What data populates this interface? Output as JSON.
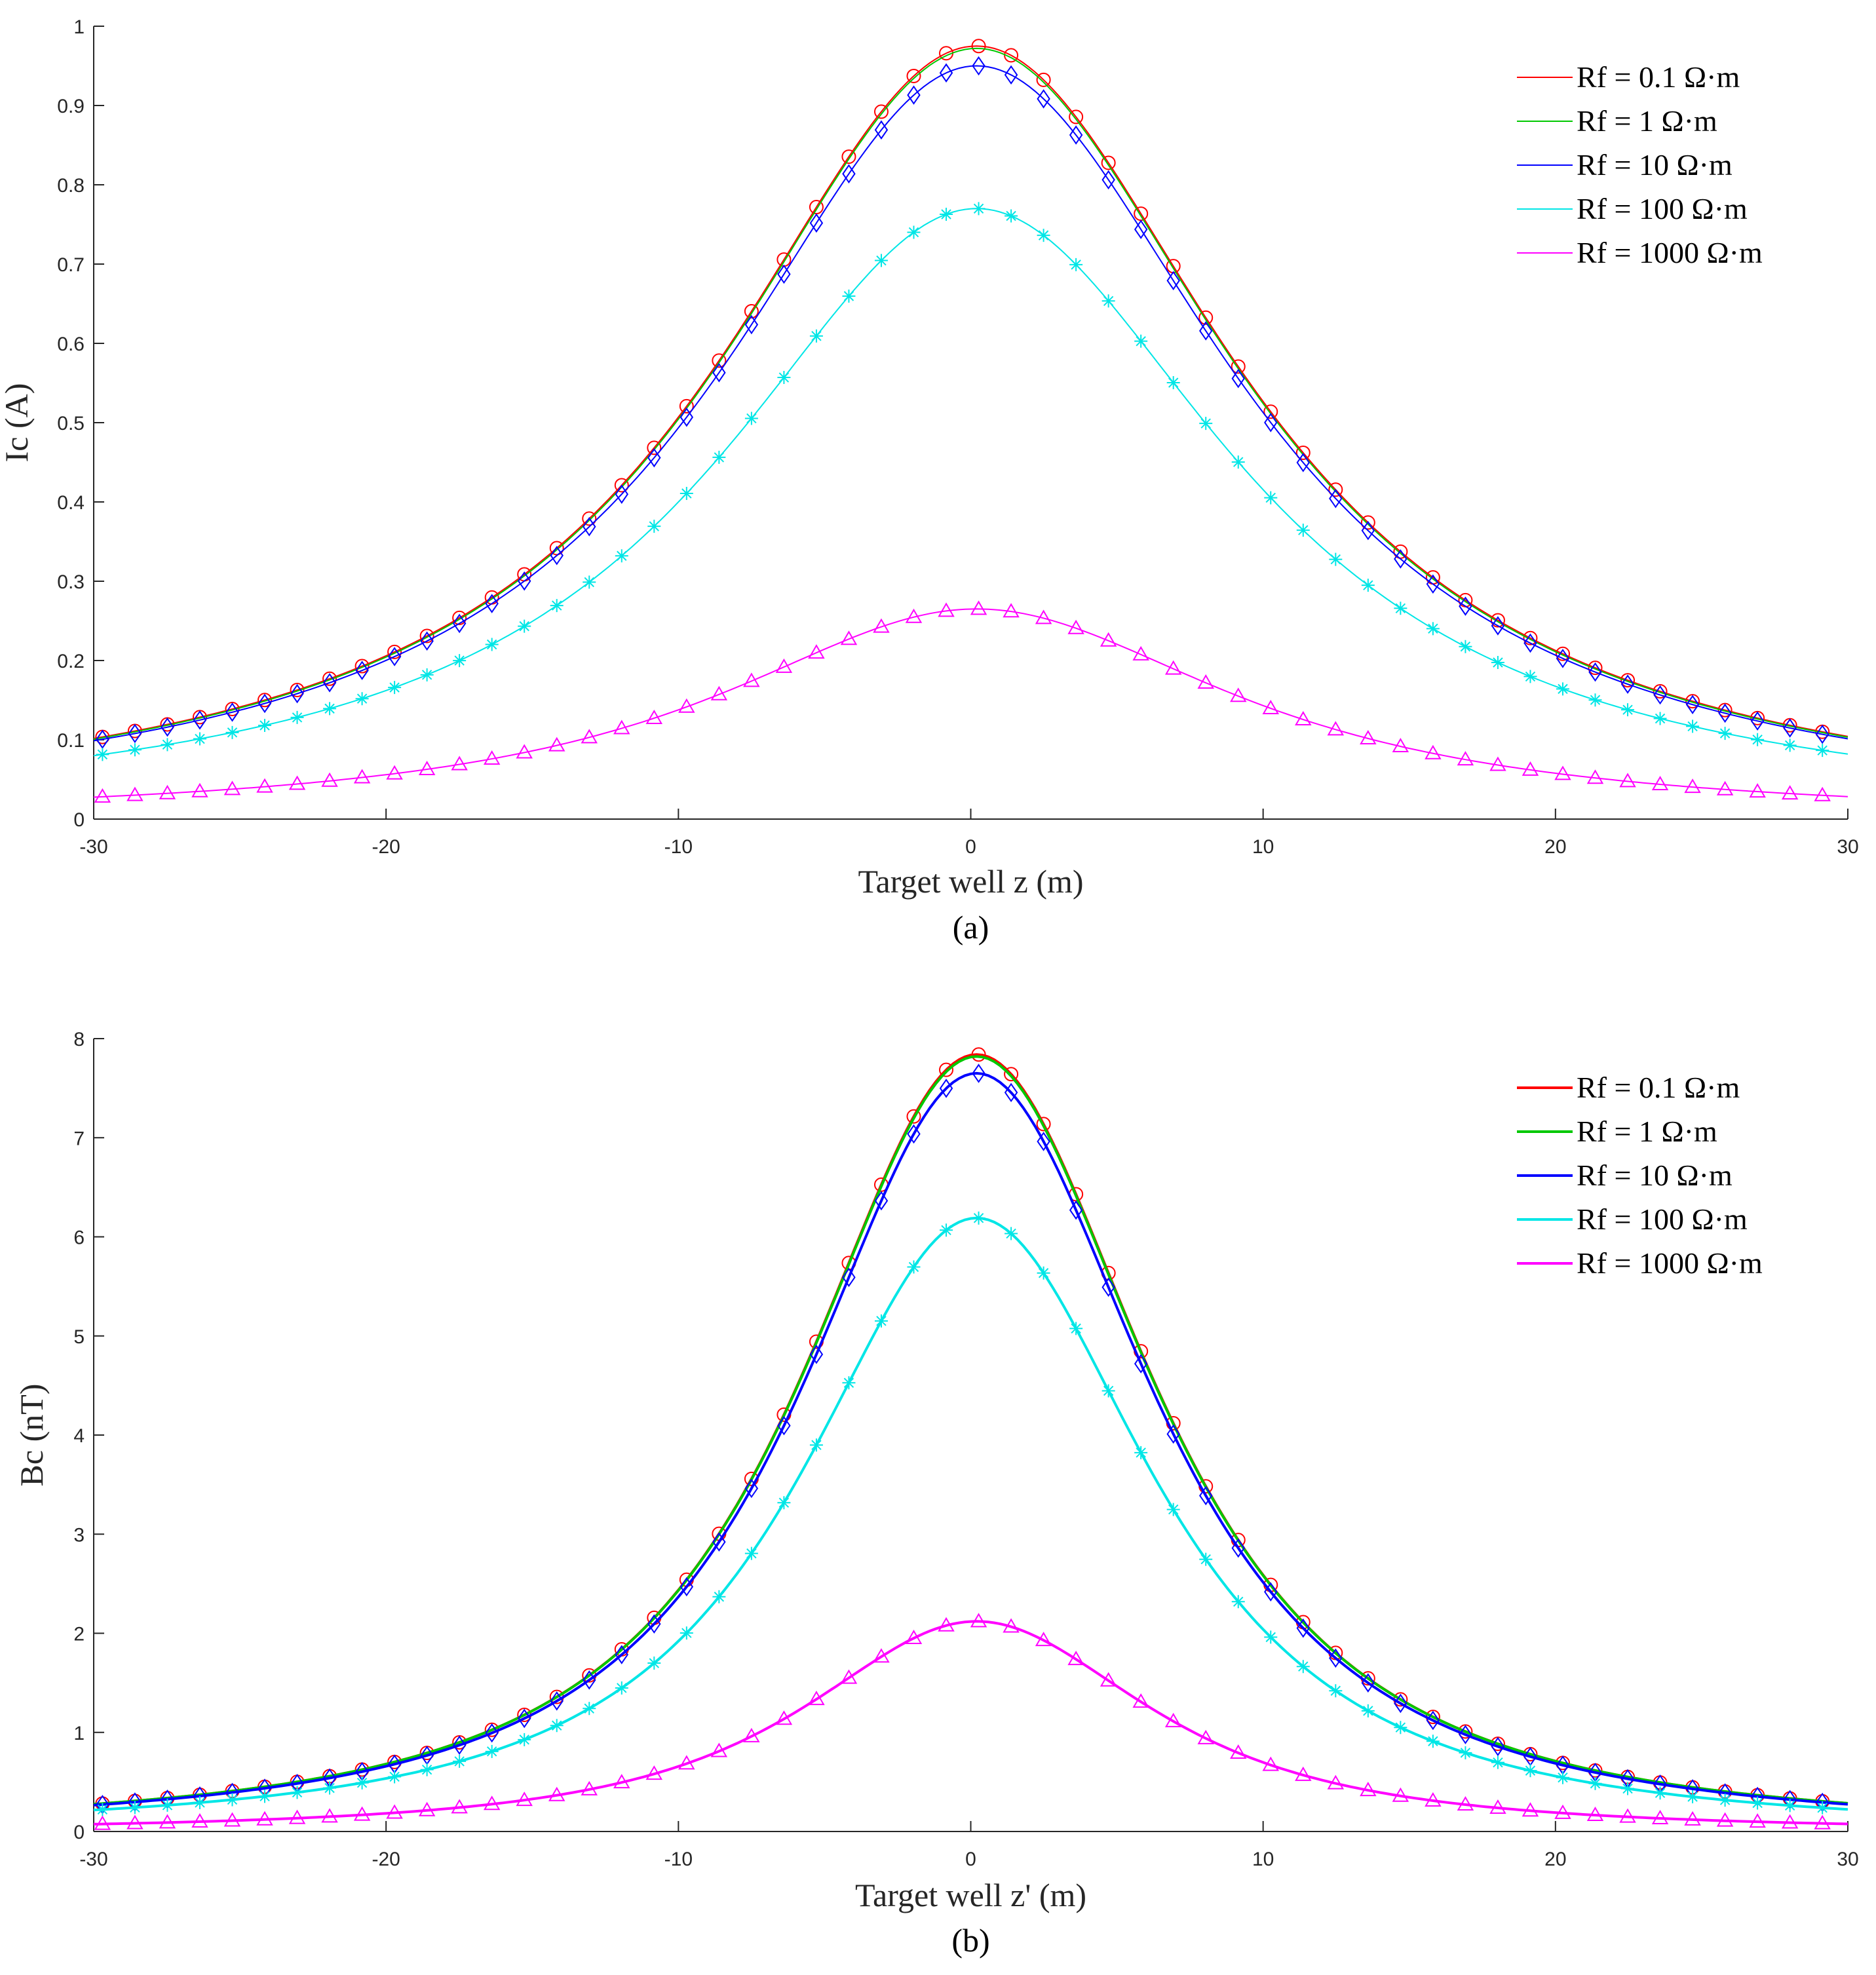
{
  "chart_data": [
    {
      "type": "line",
      "caption": "(a)",
      "xlabel": "Target well z (m)",
      "ylabel": "Ic (A)",
      "xlim": [
        -30,
        30
      ],
      "ylim": [
        0,
        1
      ],
      "xticks": [
        -30,
        -20,
        -10,
        0,
        10,
        20,
        30
      ],
      "yticks": [
        0,
        0.1,
        0.2,
        0.3,
        0.4,
        0.5,
        0.6,
        0.7,
        0.8,
        0.9,
        1
      ],
      "yticklabels": [
        "0",
        "0.1",
        "0.2",
        "0.3",
        "0.4",
        "0.5",
        "0.6",
        "0.7",
        "0.8",
        "0.9",
        "1"
      ],
      "grid": false,
      "legend_position": "top-right",
      "peak_x": 0.2,
      "line_width": "thin",
      "series": [
        {
          "name": "Rf = 0.1 Ω·m",
          "color": "#ff0000",
          "marker": "circle",
          "peak": 0.975,
          "half_width": 11.0,
          "end_value": 0.103
        },
        {
          "name": "Rf = 1 Ω·m",
          "color": "#00c800",
          "marker": "none",
          "peak": 0.972,
          "half_width": 11.0,
          "end_value": 0.102
        },
        {
          "name": "Rf = 10 Ω·m",
          "color": "#0000ff",
          "marker": "diamond",
          "peak": 0.95,
          "half_width": 11.0,
          "end_value": 0.1
        },
        {
          "name": "Rf = 100 Ω·m",
          "color": "#00e6e6",
          "marker": "asterisk",
          "peak": 0.77,
          "half_width": 11.0,
          "end_value": 0.081
        },
        {
          "name": "Rf = 1000 Ω·m",
          "color": "#ff00ff",
          "marker": "triangle",
          "peak": 0.265,
          "half_width": 11.0,
          "end_value": 0.028
        }
      ]
    },
    {
      "type": "line",
      "caption": "(b)",
      "xlabel": "Target well z' (m)",
      "ylabel": "Bc (nT)",
      "xlim": [
        -30,
        30
      ],
      "ylim": [
        0,
        8
      ],
      "xticks": [
        -30,
        -20,
        -10,
        0,
        10,
        20,
        30
      ],
      "yticks": [
        0,
        1,
        2,
        3,
        4,
        5,
        6,
        7,
        8
      ],
      "yticklabels": [
        "0",
        "1",
        "2",
        "3",
        "4",
        "5",
        "6",
        "7",
        "8"
      ],
      "grid": false,
      "legend_position": "top-right",
      "peak_x": 0.2,
      "line_width": "thick",
      "series": [
        {
          "name": "Rf = 0.1 Ω·m",
          "color": "#ff0000",
          "marker": "circle",
          "peak": 7.84,
          "half_width": 8.2,
          "end_value": 0.28
        },
        {
          "name": "Rf = 1 Ω·m",
          "color": "#00c800",
          "marker": "none",
          "peak": 7.82,
          "half_width": 8.2,
          "end_value": 0.28
        },
        {
          "name": "Rf = 10 Ω·m",
          "color": "#0000ff",
          "marker": "diamond",
          "peak": 7.65,
          "half_width": 8.2,
          "end_value": 0.27
        },
        {
          "name": "Rf = 100 Ω·m",
          "color": "#00e6e6",
          "marker": "asterisk",
          "peak": 6.19,
          "half_width": 8.2,
          "end_value": 0.22
        },
        {
          "name": "Rf = 1000 Ω·m",
          "color": "#ff00ff",
          "marker": "triangle",
          "peak": 2.12,
          "half_width": 8.2,
          "end_value": 0.075
        }
      ]
    }
  ]
}
